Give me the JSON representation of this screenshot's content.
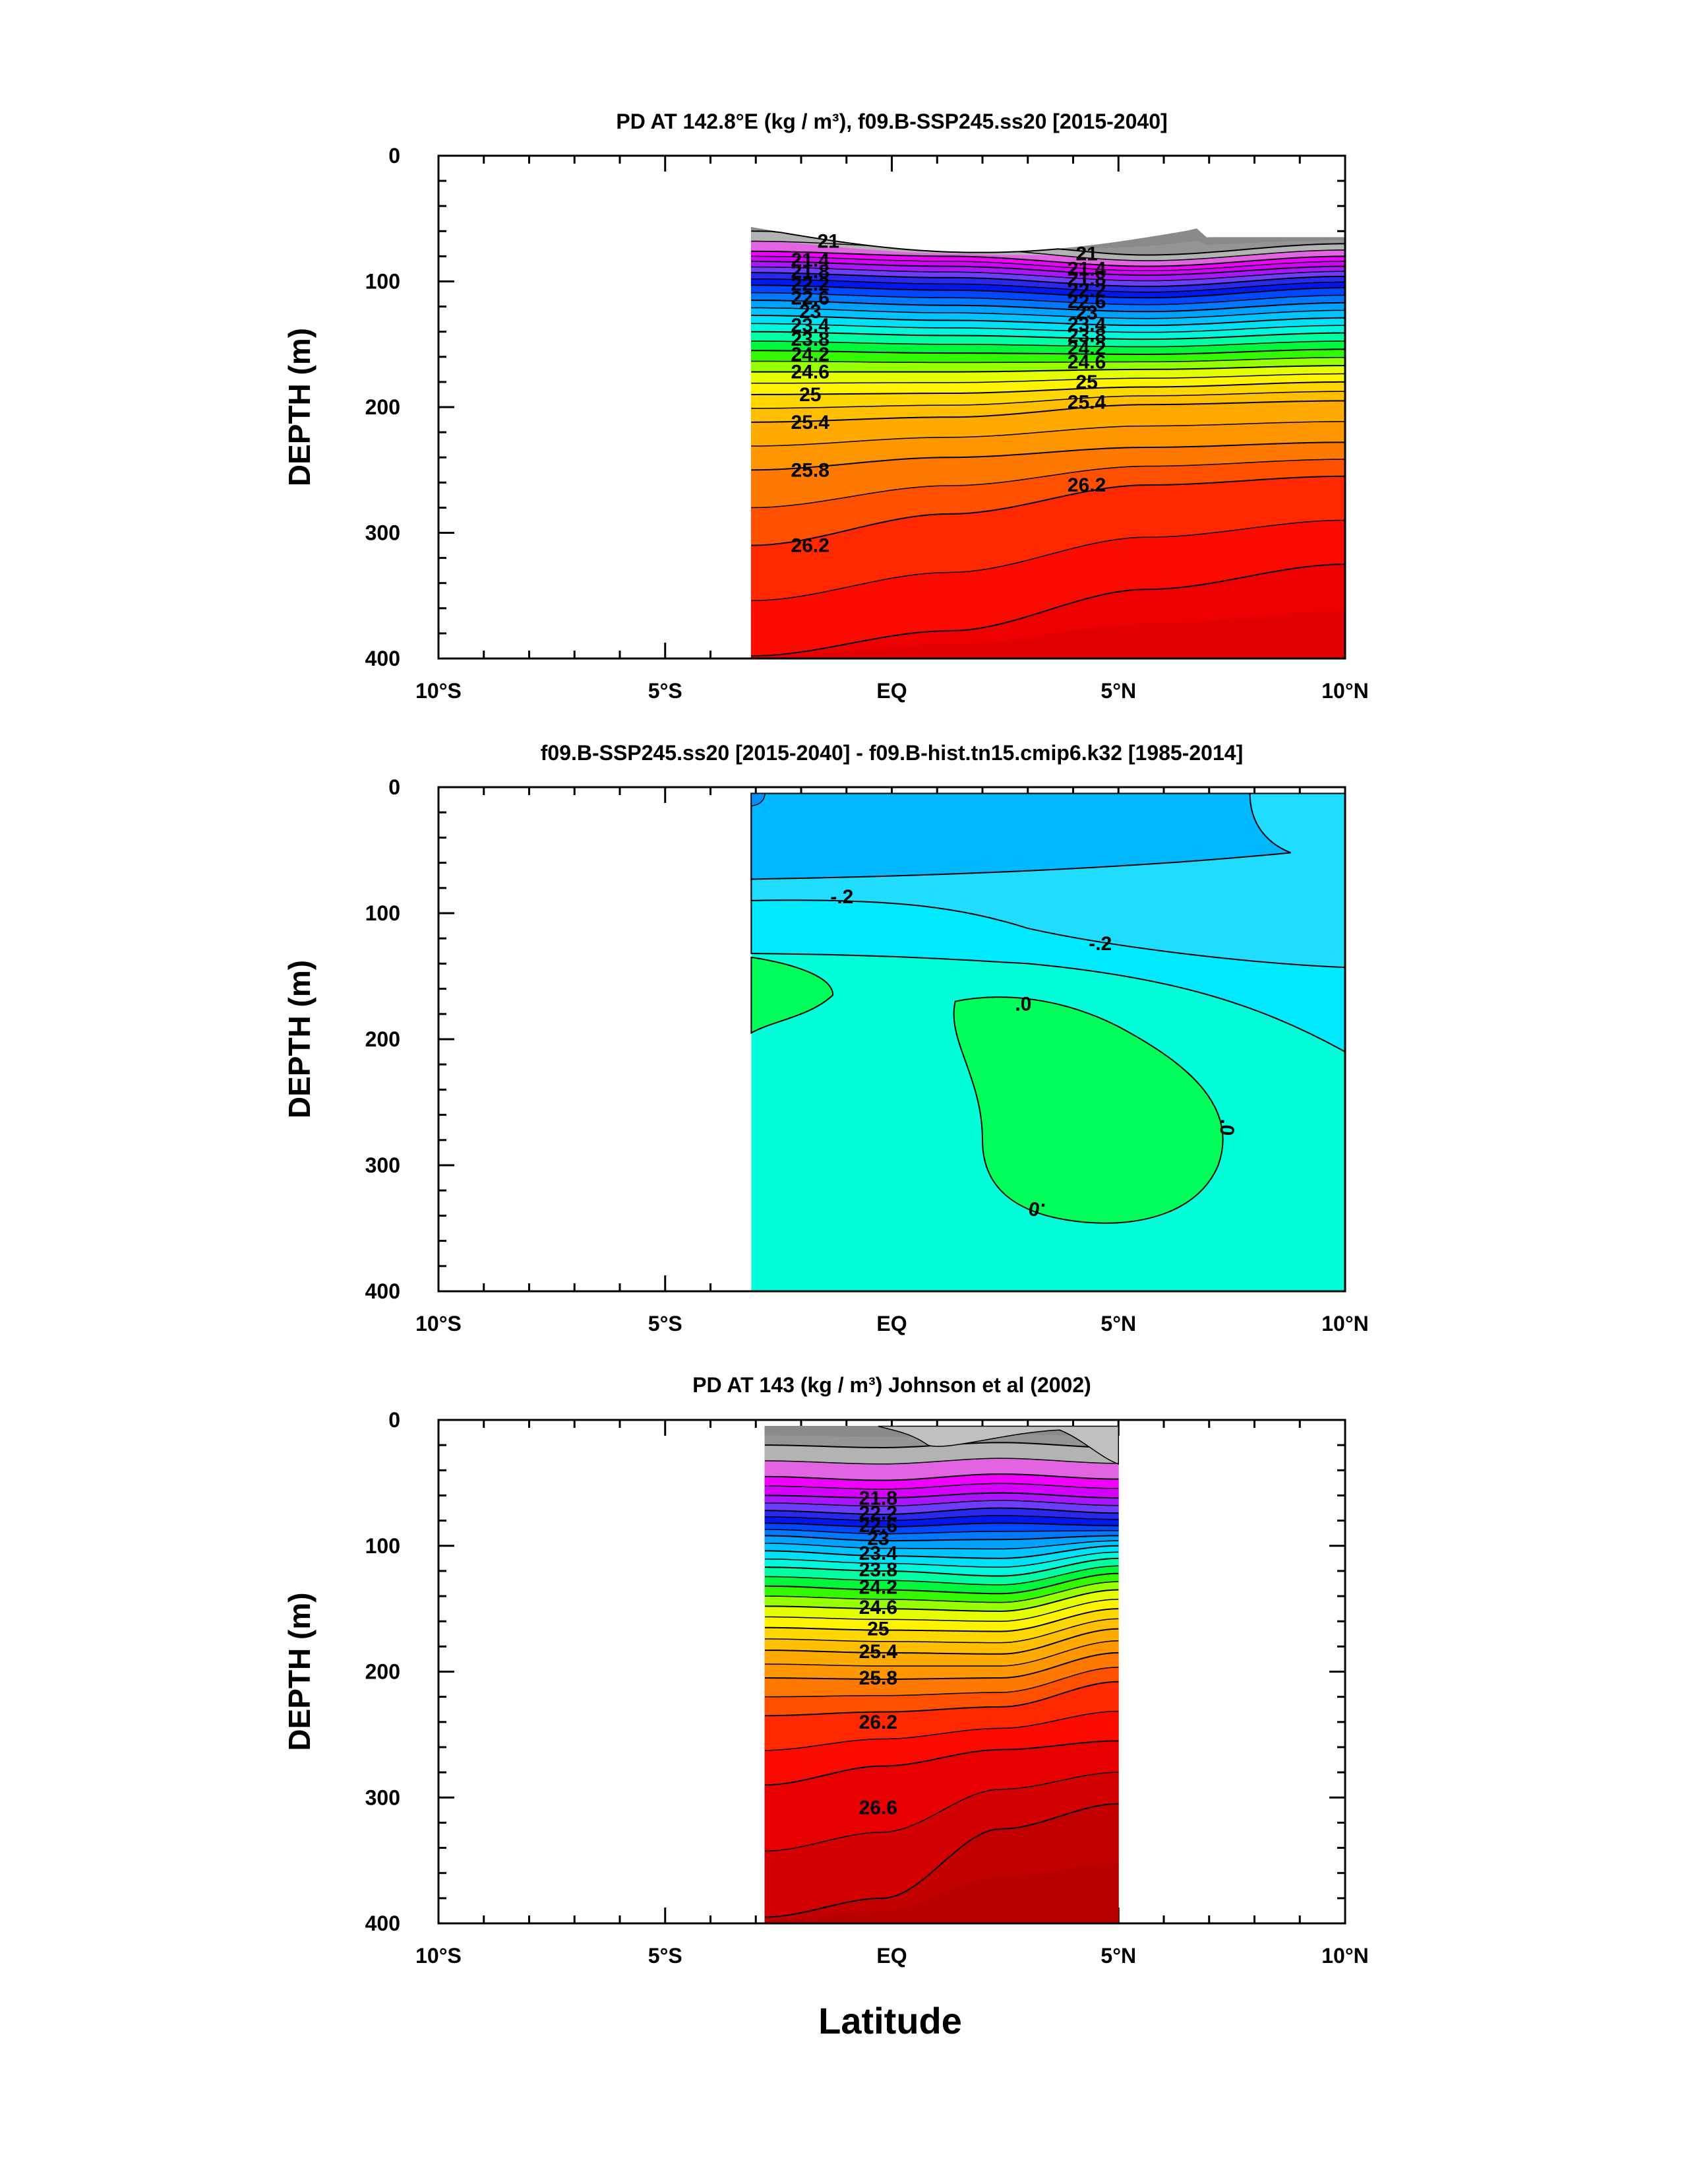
{
  "figure": {
    "xlabel": "Latitude"
  },
  "chart_data": [
    {
      "type": "heatmap",
      "title": "PD AT 142.8°E (kg / m³), f09.B-SSP245.ss20 [2015-2040]",
      "ylabel": "DEPTH (m)",
      "xlim": [
        -10,
        10
      ],
      "ylim": [
        400,
        0
      ],
      "x_ticks": [
        "10°S",
        "5°S",
        "EQ",
        "5°N",
        "10°N"
      ],
      "y_ticks": [
        "0",
        "100",
        "200",
        "300",
        "400"
      ],
      "data_extent": {
        "lat": [
          -3.1,
          10
        ],
        "depth_top_min": 57
      },
      "contour_labels": [
        "21",
        "21.4",
        "21.8",
        "22.2",
        "22.6",
        "23",
        "23.4",
        "23.8",
        "24.2",
        "24.6",
        "25",
        "25.4",
        "25.8",
        "26.2"
      ],
      "contours": [
        {
          "level": 21.0,
          "depth": [
            60,
            67,
            79,
            70
          ]
        },
        {
          "level": 21.4,
          "depth": [
            76,
            80,
            88,
            80
          ]
        },
        {
          "level": 21.8,
          "depth": [
            84,
            88,
            95,
            88
          ]
        },
        {
          "level": 22.2,
          "depth": [
            93,
            97,
            104,
            96
          ]
        },
        {
          "level": 22.6,
          "depth": [
            103,
            107,
            113,
            105
          ]
        },
        {
          "level": 23.0,
          "depth": [
            115,
            119,
            124,
            117
          ]
        },
        {
          "level": 23.4,
          "depth": [
            127,
            131,
            135,
            129
          ]
        },
        {
          "level": 23.8,
          "depth": [
            140,
            143,
            146,
            141
          ]
        },
        {
          "level": 24.2,
          "depth": [
            155,
            157,
            158,
            154
          ]
        },
        {
          "level": 24.6,
          "depth": [
            172,
            172,
            170,
            167
          ]
        },
        {
          "level": 25.0,
          "depth": [
            190,
            189,
            184,
            180
          ]
        },
        {
          "level": 25.4,
          "depth": [
            212,
            208,
            198,
            195
          ]
        },
        {
          "level": 25.8,
          "depth": [
            250,
            240,
            232,
            228
          ]
        },
        {
          "level": 26.2,
          "depth": [
            310,
            285,
            262,
            255
          ]
        },
        {
          "level": 26.6,
          "depth": [
            398,
            378,
            345,
            325
          ]
        }
      ]
    },
    {
      "type": "heatmap",
      "title": "f09.B-SSP245.ss20 [2015-2040] - f09.B-hist.tn15.cmip6.k32 [1985-2014]",
      "ylabel": "DEPTH (m)",
      "xlim": [
        -10,
        10
      ],
      "ylim": [
        400,
        0
      ],
      "x_ticks": [
        "10°S",
        "5°S",
        "EQ",
        "5°N",
        "10°N"
      ],
      "y_ticks": [
        "0",
        "100",
        "200",
        "300",
        "400"
      ],
      "data_extent": {
        "lat": [
          -3.1,
          10
        ],
        "depth_top": 5
      },
      "contour_labels": [
        "-.2",
        "-.2",
        ".0",
        ".0",
        ".0"
      ]
    },
    {
      "type": "heatmap",
      "title": "PD AT 143 (kg / m³) Johnson et al (2002)",
      "ylabel": "DEPTH (m)",
      "xlim": [
        -10,
        10
      ],
      "ylim": [
        400,
        0
      ],
      "x_ticks": [
        "10°S",
        "5°S",
        "EQ",
        "5°N",
        "10°N"
      ],
      "y_ticks": [
        "0",
        "100",
        "200",
        "300",
        "400"
      ],
      "data_extent": {
        "lat": [
          -2.8,
          5
        ],
        "depth_top": 5
      },
      "contour_labels": [
        "21.8",
        "22.2",
        "22.6",
        "23",
        "23.4",
        "23.8",
        "24.2",
        "24.6",
        "25",
        "25.4",
        "25.8",
        "26.2",
        "26.6"
      ],
      "contours": [
        {
          "level": 21.0,
          "depth": [
            20,
            22,
            18,
            22
          ]
        },
        {
          "level": 21.4,
          "depth": [
            45,
            48,
            43,
            47
          ]
        },
        {
          "level": 21.8,
          "depth": [
            60,
            62,
            58,
            62
          ]
        },
        {
          "level": 22.2,
          "depth": [
            72,
            75,
            70,
            74
          ]
        },
        {
          "level": 22.6,
          "depth": [
            82,
            85,
            82,
            84
          ]
        },
        {
          "level": 23.0,
          "depth": [
            92,
            96,
            95,
            92
          ]
        },
        {
          "level": 23.4,
          "depth": [
            104,
            108,
            110,
            100
          ]
        },
        {
          "level": 23.8,
          "depth": [
            117,
            120,
            124,
            110
          ]
        },
        {
          "level": 24.2,
          "depth": [
            132,
            135,
            138,
            122
          ]
        },
        {
          "level": 24.6,
          "depth": [
            148,
            150,
            152,
            135
          ]
        },
        {
          "level": 25.0,
          "depth": [
            165,
            167,
            168,
            150
          ]
        },
        {
          "level": 25.4,
          "depth": [
            183,
            185,
            186,
            166
          ]
        },
        {
          "level": 25.8,
          "depth": [
            205,
            206,
            205,
            185
          ]
        },
        {
          "level": 26.2,
          "depth": [
            235,
            232,
            228,
            208
          ]
        },
        {
          "level": 26.6,
          "depth": [
            290,
            275,
            262,
            255
          ]
        },
        {
          "level": 27.0,
          "depth": [
            395,
            380,
            325,
            305
          ]
        }
      ]
    }
  ]
}
